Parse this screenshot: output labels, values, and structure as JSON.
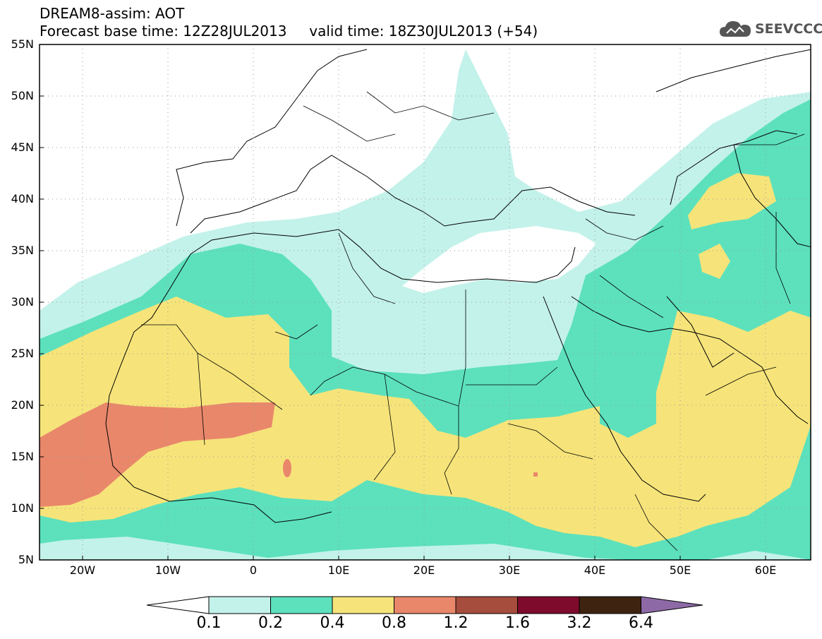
{
  "header": {
    "line1": "DREAM8-assim: AOT",
    "line2": "Forecast base time: 12Z28JUL2013     valid time: 18Z30JUL2013 (+54)"
  },
  "logo": {
    "text": "SEEVCCC",
    "icon": "cloud-icon",
    "color": "#555555"
  },
  "map": {
    "lat_labels": [
      "55N",
      "50N",
      "45N",
      "40N",
      "35N",
      "30N",
      "25N",
      "20N",
      "15N",
      "10N",
      "5N"
    ],
    "lon_labels": [
      "20W",
      "10W",
      "0",
      "10E",
      "20E",
      "30E",
      "40E",
      "50E",
      "60E"
    ],
    "lat_range": [
      5,
      55
    ],
    "lon_range": [
      -25,
      65
    ],
    "gridlines": "dotted"
  },
  "colorbar": {
    "labels": [
      "0.1",
      "0.2",
      "0.4",
      "0.8",
      "1.2",
      "1.6",
      "3.2",
      "6.4"
    ],
    "colors": [
      "#ffffff",
      "#c3f2ea",
      "#5ce1bc",
      "#f6e47a",
      "#e9876b",
      "#a64d3d",
      "#7f0b2c",
      "#3e2310",
      "#8d6aa6"
    ]
  }
}
